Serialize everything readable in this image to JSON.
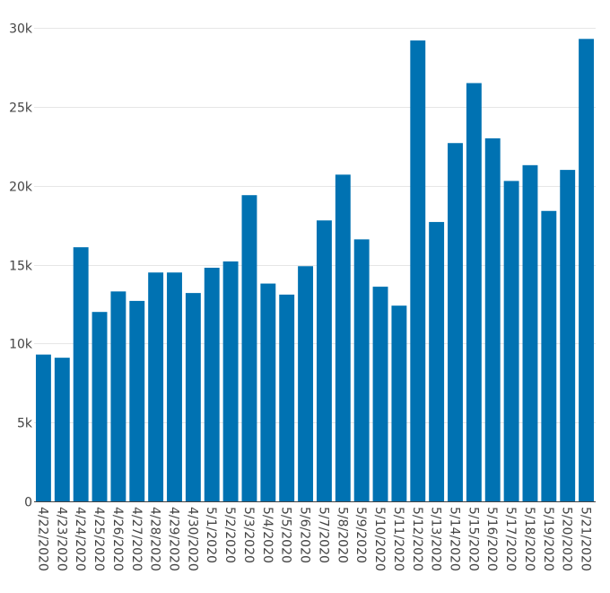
{
  "chart_data": {
    "type": "bar",
    "categories": [
      "4/22/2020",
      "4/23/2020",
      "4/24/2020",
      "4/25/2020",
      "4/26/2020",
      "4/27/2020",
      "4/28/2020",
      "4/29/2020",
      "4/30/2020",
      "5/1/2020",
      "5/2/2020",
      "5/3/2020",
      "5/4/2020",
      "5/5/2020",
      "5/6/2020",
      "5/7/2020",
      "5/8/2020",
      "5/9/2020",
      "5/10/2020",
      "5/11/2020",
      "5/12/2020",
      "5/13/2020",
      "5/14/2020",
      "5/15/2020",
      "5/16/2020",
      "5/17/2020",
      "5/18/2020",
      "5/19/2020",
      "5/20/2020",
      "5/21/2020"
    ],
    "values": [
      9300,
      9100,
      16100,
      12000,
      13300,
      12700,
      14500,
      14500,
      13200,
      14800,
      15200,
      19400,
      13800,
      13100,
      14900,
      17800,
      20700,
      16600,
      13600,
      12400,
      29200,
      17700,
      22700,
      26500,
      23000,
      20300,
      21300,
      18400,
      21000,
      29300
    ],
    "ylim": [
      0,
      30000
    ],
    "yticks": [
      0,
      5000,
      10000,
      15000,
      20000,
      25000,
      30000
    ],
    "ytick_labels": [
      "0",
      "5k",
      "10k",
      "15k",
      "20k",
      "25k",
      "30k"
    ],
    "bar_color": "#0072b2",
    "grid": true,
    "title": "",
    "xlabel": "",
    "ylabel": ""
  }
}
